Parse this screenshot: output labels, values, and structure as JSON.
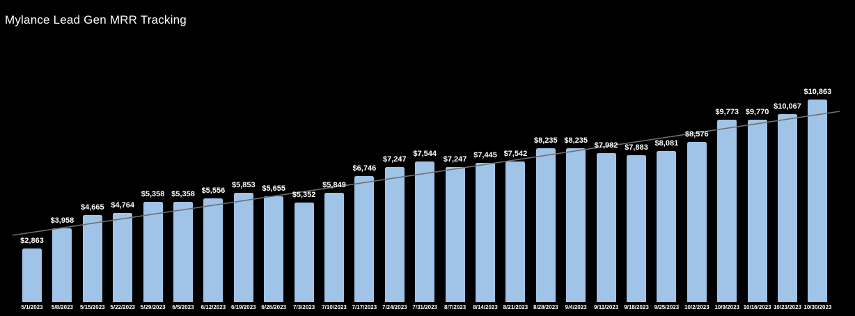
{
  "title": "Mylance Lead Gen MRR Tracking",
  "colors": {
    "background": "#000000",
    "bar_fill": "#a0c4e8",
    "trendline": "#6f6f6f",
    "label_text": "#ffffff"
  },
  "chart_data": {
    "type": "bar",
    "title": "Mylance Lead Gen MRR Tracking",
    "xlabel": "",
    "ylabel": "",
    "grid": false,
    "legend_position": "none",
    "ylim": [
      0,
      11200
    ],
    "trendline": {
      "present": true,
      "style": "linear",
      "color": "#6f6f6f"
    },
    "categories": [
      "5/1/2023",
      "5/8/2023",
      "5/15/2023",
      "5/22/2023",
      "5/29/2023",
      "6/5/2023",
      "6/12/2023",
      "6/19/2023",
      "6/26/2023",
      "7/3/2023",
      "7/10/2023",
      "7/17/2023",
      "7/24/2023",
      "7/31/2023",
      "8/7/2023",
      "8/14/2023",
      "8/21/2023",
      "8/28/2023",
      "9/4/2023",
      "9/11/2023",
      "9/18/2023",
      "9/25/2023",
      "10/2/2023",
      "10/9/2023",
      "10/16/2023",
      "10/23/2023",
      "10/30/2023"
    ],
    "values": [
      2863,
      3958,
      4665,
      4764,
      5358,
      5358,
      5556,
      5853,
      5655,
      5352,
      5849,
      6746,
      7247,
      7544,
      7247,
      7445,
      7542,
      8235,
      8235,
      7982,
      7883,
      8081,
      8576,
      9773,
      9770,
      10067,
      10863
    ],
    "value_labels": [
      "$2,863",
      "$3,958",
      "$4,665",
      "$4,764",
      "$5,358",
      "$5,358",
      "$5,556",
      "$5,853",
      "$5,655",
      "$5,352",
      "$5,849",
      "$6,746",
      "$7,247",
      "$7,544",
      "$7,247",
      "$7,445",
      "$7,542",
      "$8,235",
      "$8,235",
      "$7,982",
      "$7,883",
      "$8,081",
      "$8,576",
      "$9,773",
      "$9,770",
      "$10,067",
      "$10,863"
    ]
  }
}
